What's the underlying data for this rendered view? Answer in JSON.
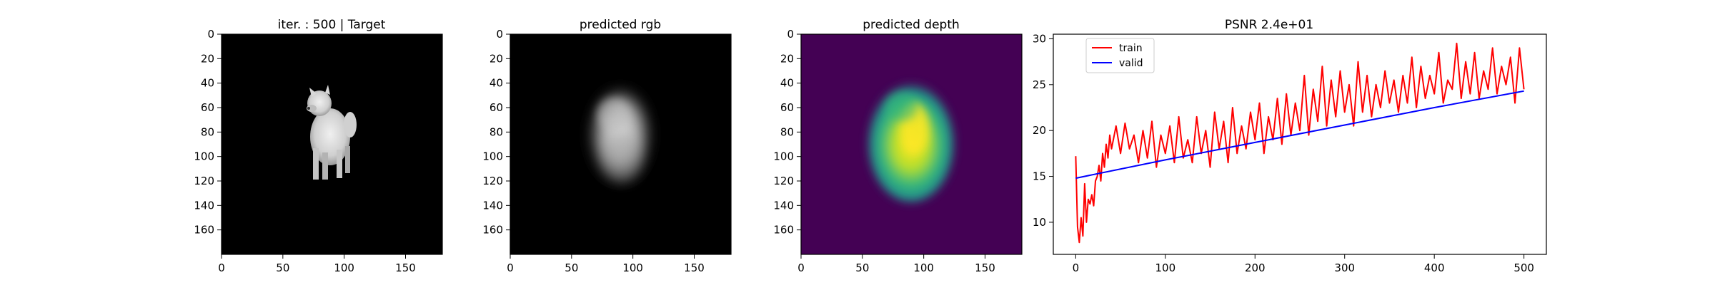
{
  "panels": [
    {
      "id": "target",
      "title": "iter. : 500 | Target",
      "image": "dog-target-rgb",
      "ylim": [
        180,
        0
      ],
      "xlim": [
        0,
        180
      ],
      "xticks": [
        0,
        50,
        100,
        150
      ],
      "yticks": [
        0,
        20,
        40,
        60,
        80,
        100,
        120,
        140,
        160
      ]
    },
    {
      "id": "rgb",
      "title": "predicted rgb",
      "image": "blurred-rgb-prediction",
      "ylim": [
        180,
        0
      ],
      "xlim": [
        0,
        180
      ],
      "xticks": [
        0,
        50,
        100,
        150
      ],
      "yticks": [
        0,
        20,
        40,
        60,
        80,
        100,
        120,
        140,
        160
      ]
    },
    {
      "id": "depth",
      "title": "predicted depth",
      "image": "viridis-depth-prediction",
      "ylim": [
        180,
        0
      ],
      "xlim": [
        0,
        180
      ],
      "xticks": [
        0,
        50,
        100,
        150
      ],
      "yticks": [
        0,
        20,
        40,
        60,
        80,
        100,
        120,
        140,
        160
      ]
    }
  ],
  "colors": {
    "train": "#ff0000",
    "valid": "#0000ff",
    "depth_bg": "#440154",
    "depth_mid": "#21918c",
    "depth_hi": "#fde725",
    "image_bg": "#000000"
  },
  "chart_data": {
    "type": "line",
    "title": "PSNR 2.4e+01",
    "xlabel": "",
    "ylabel": "",
    "xlim": [
      -25,
      525
    ],
    "ylim": [
      6.5,
      30.5
    ],
    "xticks": [
      0,
      100,
      200,
      300,
      400,
      500
    ],
    "yticks": [
      10,
      15,
      20,
      25,
      30
    ],
    "grid": false,
    "legend": "top-left",
    "series": [
      {
        "name": "train",
        "color": "#ff0000",
        "x": [
          0,
          2,
          4,
          6,
          8,
          10,
          12,
          14,
          16,
          18,
          20,
          22,
          24,
          26,
          28,
          30,
          32,
          34,
          36,
          38,
          40,
          45,
          50,
          55,
          60,
          65,
          70,
          75,
          80,
          85,
          90,
          95,
          100,
          105,
          110,
          115,
          120,
          125,
          130,
          135,
          140,
          145,
          150,
          155,
          160,
          165,
          170,
          175,
          180,
          185,
          190,
          195,
          200,
          205,
          210,
          215,
          220,
          225,
          230,
          235,
          240,
          245,
          250,
          255,
          260,
          265,
          270,
          275,
          280,
          285,
          290,
          295,
          300,
          305,
          310,
          315,
          320,
          325,
          330,
          335,
          340,
          345,
          350,
          355,
          360,
          365,
          370,
          375,
          380,
          385,
          390,
          395,
          400,
          405,
          410,
          415,
          420,
          425,
          430,
          435,
          440,
          445,
          450,
          455,
          460,
          465,
          470,
          475,
          480,
          485,
          490,
          495,
          500
        ],
        "y": [
          17.2,
          9.5,
          7.8,
          10.5,
          8.5,
          14.2,
          10.0,
          12.5,
          12.0,
          13.0,
          11.8,
          14.5,
          15.0,
          16.2,
          14.5,
          17.5,
          16.0,
          18.5,
          17.0,
          19.5,
          18.0,
          20.5,
          17.5,
          20.8,
          18.0,
          19.5,
          16.5,
          20.0,
          17.0,
          21.0,
          16.0,
          19.5,
          17.5,
          20.5,
          16.5,
          21.5,
          17.0,
          19.0,
          16.5,
          21.5,
          17.5,
          20.0,
          16.0,
          22.0,
          18.0,
          21.0,
          16.5,
          22.5,
          17.5,
          20.5,
          18.0,
          22.0,
          19.0,
          23.0,
          17.5,
          21.5,
          19.0,
          23.5,
          18.5,
          24.0,
          19.5,
          23.0,
          20.0,
          26.0,
          19.5,
          24.5,
          21.0,
          27.0,
          20.5,
          25.5,
          21.5,
          26.5,
          22.0,
          25.0,
          20.5,
          27.5,
          22.0,
          26.0,
          21.5,
          25.0,
          22.5,
          26.5,
          23.0,
          25.5,
          22.0,
          26.0,
          23.0,
          28.0,
          22.5,
          27.0,
          23.5,
          26.0,
          24.0,
          28.5,
          23.0,
          25.5,
          24.5,
          29.5,
          23.5,
          27.5,
          24.0,
          28.5,
          23.5,
          26.5,
          24.5,
          29.0,
          24.0,
          27.0,
          25.0,
          28.0,
          23.0,
          29.0,
          24.5
        ]
      },
      {
        "name": "valid",
        "color": "#0000ff",
        "x": [
          0,
          100,
          200,
          300,
          400,
          500
        ],
        "y": [
          14.8,
          16.8,
          18.7,
          20.6,
          22.5,
          24.3
        ]
      }
    ]
  }
}
